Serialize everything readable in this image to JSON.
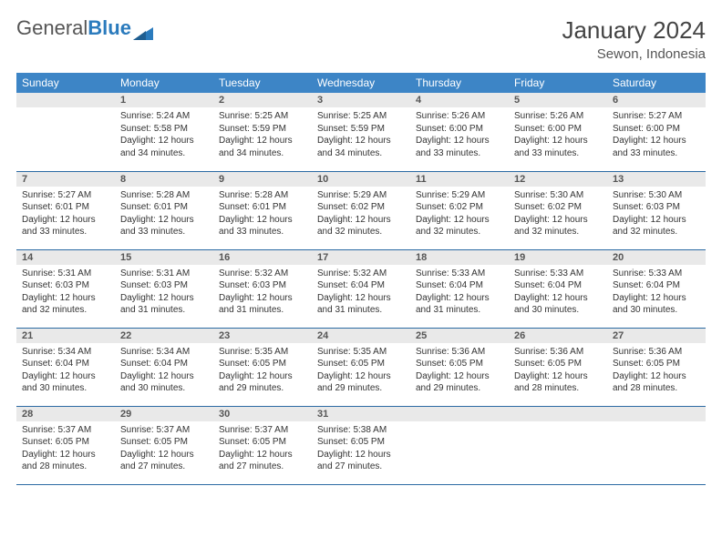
{
  "brand": {
    "part1": "General",
    "part2": "Blue"
  },
  "title": "January 2024",
  "location": "Sewon, Indonesia",
  "colors": {
    "header_bg": "#3d85c6",
    "header_text": "#ffffff",
    "daynum_bg": "#e9e9e9",
    "row_divider": "#2b6aa3"
  },
  "weekdays": [
    "Sunday",
    "Monday",
    "Tuesday",
    "Wednesday",
    "Thursday",
    "Friday",
    "Saturday"
  ],
  "start_offset": 1,
  "days": [
    {
      "n": 1,
      "sr": "5:24 AM",
      "ss": "5:58 PM",
      "dl": "12 hours and 34 minutes."
    },
    {
      "n": 2,
      "sr": "5:25 AM",
      "ss": "5:59 PM",
      "dl": "12 hours and 34 minutes."
    },
    {
      "n": 3,
      "sr": "5:25 AM",
      "ss": "5:59 PM",
      "dl": "12 hours and 34 minutes."
    },
    {
      "n": 4,
      "sr": "5:26 AM",
      "ss": "6:00 PM",
      "dl": "12 hours and 33 minutes."
    },
    {
      "n": 5,
      "sr": "5:26 AM",
      "ss": "6:00 PM",
      "dl": "12 hours and 33 minutes."
    },
    {
      "n": 6,
      "sr": "5:27 AM",
      "ss": "6:00 PM",
      "dl": "12 hours and 33 minutes."
    },
    {
      "n": 7,
      "sr": "5:27 AM",
      "ss": "6:01 PM",
      "dl": "12 hours and 33 minutes."
    },
    {
      "n": 8,
      "sr": "5:28 AM",
      "ss": "6:01 PM",
      "dl": "12 hours and 33 minutes."
    },
    {
      "n": 9,
      "sr": "5:28 AM",
      "ss": "6:01 PM",
      "dl": "12 hours and 33 minutes."
    },
    {
      "n": 10,
      "sr": "5:29 AM",
      "ss": "6:02 PM",
      "dl": "12 hours and 32 minutes."
    },
    {
      "n": 11,
      "sr": "5:29 AM",
      "ss": "6:02 PM",
      "dl": "12 hours and 32 minutes."
    },
    {
      "n": 12,
      "sr": "5:30 AM",
      "ss": "6:02 PM",
      "dl": "12 hours and 32 minutes."
    },
    {
      "n": 13,
      "sr": "5:30 AM",
      "ss": "6:03 PM",
      "dl": "12 hours and 32 minutes."
    },
    {
      "n": 14,
      "sr": "5:31 AM",
      "ss": "6:03 PM",
      "dl": "12 hours and 32 minutes."
    },
    {
      "n": 15,
      "sr": "5:31 AM",
      "ss": "6:03 PM",
      "dl": "12 hours and 31 minutes."
    },
    {
      "n": 16,
      "sr": "5:32 AM",
      "ss": "6:03 PM",
      "dl": "12 hours and 31 minutes."
    },
    {
      "n": 17,
      "sr": "5:32 AM",
      "ss": "6:04 PM",
      "dl": "12 hours and 31 minutes."
    },
    {
      "n": 18,
      "sr": "5:33 AM",
      "ss": "6:04 PM",
      "dl": "12 hours and 31 minutes."
    },
    {
      "n": 19,
      "sr": "5:33 AM",
      "ss": "6:04 PM",
      "dl": "12 hours and 30 minutes."
    },
    {
      "n": 20,
      "sr": "5:33 AM",
      "ss": "6:04 PM",
      "dl": "12 hours and 30 minutes."
    },
    {
      "n": 21,
      "sr": "5:34 AM",
      "ss": "6:04 PM",
      "dl": "12 hours and 30 minutes."
    },
    {
      "n": 22,
      "sr": "5:34 AM",
      "ss": "6:04 PM",
      "dl": "12 hours and 30 minutes."
    },
    {
      "n": 23,
      "sr": "5:35 AM",
      "ss": "6:05 PM",
      "dl": "12 hours and 29 minutes."
    },
    {
      "n": 24,
      "sr": "5:35 AM",
      "ss": "6:05 PM",
      "dl": "12 hours and 29 minutes."
    },
    {
      "n": 25,
      "sr": "5:36 AM",
      "ss": "6:05 PM",
      "dl": "12 hours and 29 minutes."
    },
    {
      "n": 26,
      "sr": "5:36 AM",
      "ss": "6:05 PM",
      "dl": "12 hours and 28 minutes."
    },
    {
      "n": 27,
      "sr": "5:36 AM",
      "ss": "6:05 PM",
      "dl": "12 hours and 28 minutes."
    },
    {
      "n": 28,
      "sr": "5:37 AM",
      "ss": "6:05 PM",
      "dl": "12 hours and 28 minutes."
    },
    {
      "n": 29,
      "sr": "5:37 AM",
      "ss": "6:05 PM",
      "dl": "12 hours and 27 minutes."
    },
    {
      "n": 30,
      "sr": "5:37 AM",
      "ss": "6:05 PM",
      "dl": "12 hours and 27 minutes."
    },
    {
      "n": 31,
      "sr": "5:38 AM",
      "ss": "6:05 PM",
      "dl": "12 hours and 27 minutes."
    }
  ],
  "labels": {
    "sunrise": "Sunrise:",
    "sunset": "Sunset:",
    "daylight": "Daylight:"
  }
}
